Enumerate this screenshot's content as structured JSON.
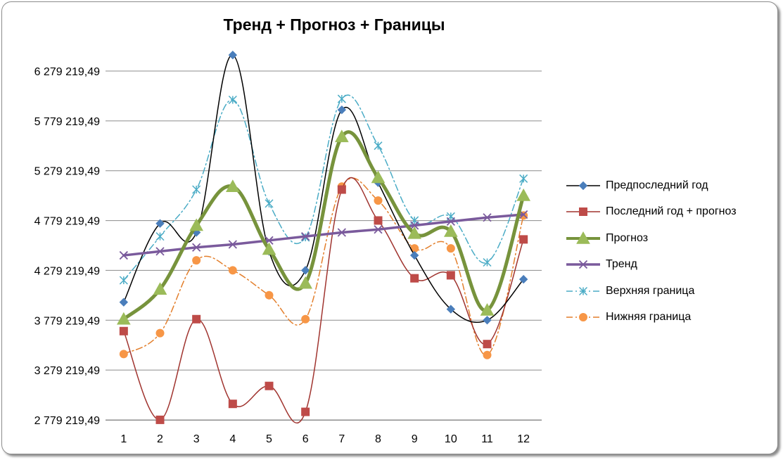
{
  "chart_data": {
    "type": "line",
    "title": "Тренд + Прогноз + Границы",
    "xlabel": "",
    "ylabel": "",
    "x": [
      1,
      2,
      3,
      4,
      5,
      6,
      7,
      8,
      9,
      10,
      11,
      12
    ],
    "y_ticks": [
      2779219.49,
      3279219.49,
      3779219.49,
      4279219.49,
      4779219.49,
      5279219.49,
      5779219.49,
      6279219.49
    ],
    "y_tick_labels": [
      "2 779 219,49",
      "3 279 219,49",
      "3 779 219,49",
      "4 279 219,49",
      "4 779 219,49",
      "5 279 219,49",
      "5 779 219,49",
      "6 279 219,49"
    ],
    "ylim": [
      2779219.49,
      6279219.49
    ],
    "grid": "horizontal",
    "legend_position": "right",
    "series": [
      {
        "name": "Предпоследний год",
        "color": "#000000",
        "marker_color": "#4a7ebb",
        "marker": "diamond",
        "style": "solid",
        "width": 1.5,
        "values": [
          3960000,
          4750000,
          4660000,
          6440000,
          4470000,
          4280000,
          5890000,
          5160000,
          4430000,
          3890000,
          3780000,
          4190000
        ]
      },
      {
        "name": "Последний год + прогноз",
        "color": "#a0342f",
        "marker_color": "#be4b48",
        "marker": "square",
        "style": "solid",
        "width": 1.5,
        "values": [
          3670000,
          2780000,
          3790000,
          2940000,
          3120000,
          2860000,
          5090000,
          4780000,
          4200000,
          4230000,
          3540000,
          4590000
        ]
      },
      {
        "name": "Прогноз",
        "color": "#77933c",
        "marker_color": "#9bbb59",
        "marker": "triangle",
        "style": "solid",
        "width": 5,
        "values": [
          3790000,
          4090000,
          4730000,
          5120000,
          4490000,
          4150000,
          5620000,
          5210000,
          4650000,
          4670000,
          3880000,
          5030000
        ]
      },
      {
        "name": "Тренд",
        "color": "#7a5a9c",
        "marker_color": "#7a5a9c",
        "marker": "x",
        "style": "solid",
        "width": 3.5,
        "values": [
          4430000,
          4470000,
          4510000,
          4540000,
          4580000,
          4620000,
          4660000,
          4690000,
          4730000,
          4770000,
          4810000,
          4840000
        ]
      },
      {
        "name": "Верхняя граница",
        "color": "#4bacc6",
        "marker_color": "#4bacc6",
        "marker": "star",
        "style": "dashdot",
        "width": 1.5,
        "values": [
          4180000,
          4620000,
          5090000,
          5990000,
          4950000,
          4610000,
          6000000,
          5530000,
          4780000,
          4820000,
          4360000,
          5200000
        ]
      },
      {
        "name": "Нижняя граница",
        "color": "#e37f2c",
        "marker_color": "#f79646",
        "marker": "circle",
        "style": "dashdot",
        "width": 1.5,
        "values": [
          3440000,
          3650000,
          4380000,
          4280000,
          4030000,
          3790000,
          5120000,
          4980000,
          4500000,
          4500000,
          3430000,
          4830000
        ]
      }
    ]
  }
}
